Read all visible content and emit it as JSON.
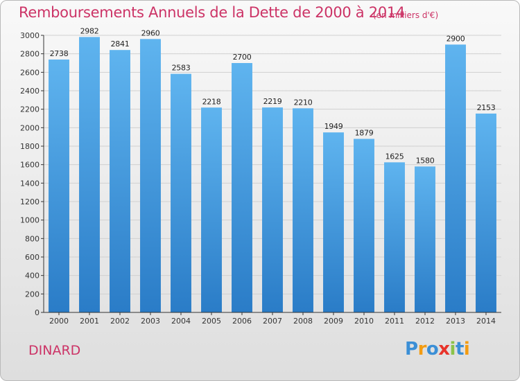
{
  "title": "Remboursements Annuels de la Dette de 2000 à 2014",
  "subtitle": "(en milliers d'€)",
  "commune": "DINARD",
  "logo_text": "Proxiti",
  "colors": {
    "title": "#cc3366",
    "bar_top": "#5fb4ef",
    "bar_bottom": "#2a7cc7",
    "grid": "#d0d0d0",
    "axis": "#333333"
  },
  "chart_data": {
    "type": "bar",
    "title": "Remboursements Annuels de la Dette de 2000 à 2014",
    "subtitle": "(en milliers d'€)",
    "categories": [
      "2000",
      "2001",
      "2002",
      "2003",
      "2004",
      "2005",
      "2006",
      "2007",
      "2008",
      "2009",
      "2010",
      "2011",
      "2012",
      "2013",
      "2014"
    ],
    "values": [
      2738,
      2982,
      2841,
      2960,
      2583,
      2218,
      2700,
      2219,
      2210,
      1949,
      1879,
      1625,
      1580,
      2900,
      2153
    ],
    "ylim": [
      0,
      3000
    ],
    "yticks": [
      0,
      200,
      400,
      600,
      800,
      1000,
      1200,
      1400,
      1600,
      1800,
      2000,
      2200,
      2400,
      2600,
      2800,
      3000
    ],
    "grid": true,
    "xlabel": "",
    "ylabel": ""
  }
}
